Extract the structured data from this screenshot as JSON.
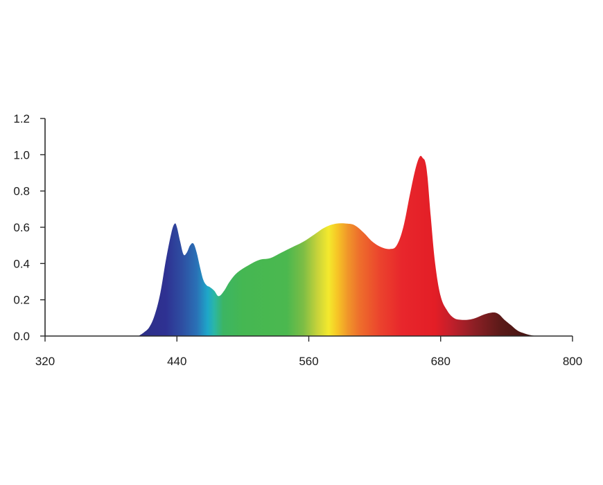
{
  "chart_data": {
    "type": "area",
    "title": "",
    "xlabel": "",
    "ylabel": "",
    "xlim": [
      320,
      800
    ],
    "ylim": [
      0,
      1.2
    ],
    "x_ticks": [
      320,
      440,
      560,
      680,
      800
    ],
    "x_tick_labels": [
      "320",
      "440",
      "560",
      "680",
      "800"
    ],
    "y_ticks": [
      0.0,
      0.2,
      0.4,
      0.6,
      0.8,
      1.0,
      1.2
    ],
    "y_tick_labels": [
      "0.0",
      "0.2",
      "0.4",
      "0.6",
      "0.8",
      "1.0",
      "1.2"
    ],
    "grid": false,
    "legend": "none",
    "fill": "visible-spectrum gradient by wavelength",
    "series": [
      {
        "x": [
          405,
          410,
          415,
          420,
          425,
          430,
          435,
          438,
          440,
          443,
          446,
          449,
          452,
          455,
          458,
          461,
          464,
          467,
          470,
          474,
          478,
          483,
          488,
          495,
          505,
          515,
          525,
          535,
          545,
          555,
          565,
          575,
          585,
          595,
          602,
          610,
          618,
          626,
          634,
          640,
          646,
          652,
          657,
          661,
          664,
          666,
          668,
          671,
          675,
          680,
          686,
          692,
          698,
          705,
          712,
          720,
          728,
          733,
          738,
          744,
          750,
          756,
          762,
          768
        ],
        "y": [
          0.0,
          0.02,
          0.05,
          0.12,
          0.24,
          0.42,
          0.57,
          0.62,
          0.6,
          0.52,
          0.45,
          0.46,
          0.5,
          0.51,
          0.46,
          0.38,
          0.31,
          0.28,
          0.27,
          0.25,
          0.22,
          0.25,
          0.3,
          0.35,
          0.39,
          0.42,
          0.43,
          0.46,
          0.49,
          0.52,
          0.56,
          0.6,
          0.62,
          0.62,
          0.61,
          0.57,
          0.52,
          0.49,
          0.48,
          0.5,
          0.6,
          0.78,
          0.92,
          0.99,
          0.98,
          0.96,
          0.88,
          0.66,
          0.4,
          0.22,
          0.14,
          0.1,
          0.09,
          0.09,
          0.1,
          0.12,
          0.13,
          0.12,
          0.09,
          0.06,
          0.03,
          0.015,
          0.005,
          0.0
        ]
      }
    ]
  }
}
